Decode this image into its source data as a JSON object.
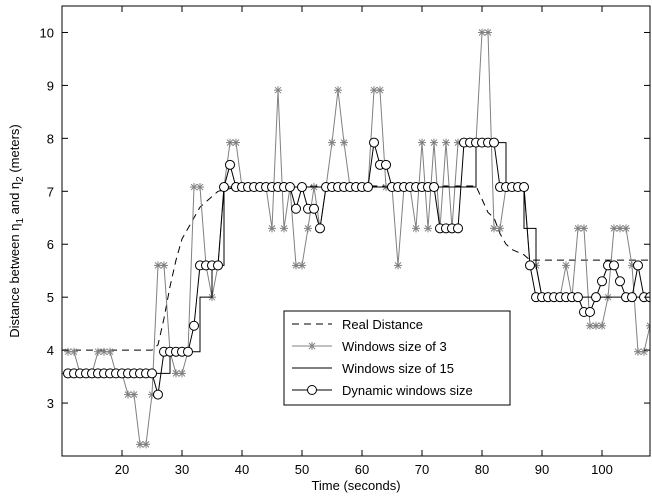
{
  "chart_data": {
    "type": "line",
    "title": "",
    "xlabel": "Time (seconds)",
    "ylabel": "Distance between η1 and η2 (meters)",
    "ylabel_parts": [
      "Distance between η",
      "1",
      " and η",
      "2",
      " (meters)"
    ],
    "xlim": [
      10,
      108
    ],
    "ylim": [
      2,
      10.5
    ],
    "xticks": [
      20,
      30,
      40,
      50,
      60,
      70,
      80,
      90,
      100
    ],
    "yticks": [
      3,
      4,
      5,
      6,
      7,
      8,
      9,
      10
    ],
    "grid": false,
    "legend_position": "lower-center",
    "series": [
      {
        "name": "Real Distance",
        "style": "dashed",
        "marker": "none",
        "color": "#000000",
        "points": [
          [
            10,
            4
          ],
          [
            13,
            4
          ],
          [
            16,
            4
          ],
          [
            19,
            4
          ],
          [
            22,
            4
          ],
          [
            25,
            4
          ],
          [
            26,
            4.1
          ],
          [
            27,
            4.6
          ],
          [
            28,
            5.2
          ],
          [
            29,
            5.7
          ],
          [
            30,
            6.1
          ],
          [
            31,
            6.3
          ],
          [
            32,
            6.5
          ],
          [
            33,
            6.7
          ],
          [
            34,
            6.8
          ],
          [
            35,
            6.9
          ],
          [
            36,
            7.0
          ],
          [
            38,
            7.05
          ],
          [
            40,
            7.1
          ],
          [
            78,
            7.1
          ],
          [
            79,
            7.1
          ],
          [
            80,
            6.85
          ],
          [
            81,
            6.6
          ],
          [
            82,
            6.5
          ],
          [
            83,
            6.2
          ],
          [
            84,
            6.0
          ],
          [
            85,
            5.9
          ],
          [
            86,
            5.85
          ],
          [
            87,
            5.8
          ],
          [
            88,
            5.7
          ],
          [
            108,
            5.7
          ]
        ]
      },
      {
        "name": "Windows size of 3",
        "style": "solid",
        "marker": "star",
        "color": "#808080",
        "points": [
          [
            11,
            3.97
          ],
          [
            12,
            3.97
          ],
          [
            13,
            3.56
          ],
          [
            14,
            3.56
          ],
          [
            15,
            3.56
          ],
          [
            16,
            3.97
          ],
          [
            17,
            3.97
          ],
          [
            18,
            3.97
          ],
          [
            19,
            3.56
          ],
          [
            20,
            3.56
          ],
          [
            21,
            3.16
          ],
          [
            22,
            3.16
          ],
          [
            23,
            2.22
          ],
          [
            24,
            2.22
          ],
          [
            25,
            3.16
          ],
          [
            26,
            5.6
          ],
          [
            27,
            5.6
          ],
          [
            28,
            3.97
          ],
          [
            29,
            3.56
          ],
          [
            30,
            3.56
          ],
          [
            31,
            3.97
          ],
          [
            32,
            7.08
          ],
          [
            33,
            7.08
          ],
          [
            34,
            5.6
          ],
          [
            35,
            5.0
          ],
          [
            36,
            5.6
          ],
          [
            37,
            7.08
          ],
          [
            38,
            7.92
          ],
          [
            39,
            7.92
          ],
          [
            40,
            7.08
          ],
          [
            41,
            7.08
          ],
          [
            42,
            7.08
          ],
          [
            43,
            7.08
          ],
          [
            44,
            7.08
          ],
          [
            45,
            6.3
          ],
          [
            46,
            8.91
          ],
          [
            47,
            6.3
          ],
          [
            48,
            7.08
          ],
          [
            49,
            5.6
          ],
          [
            50,
            5.6
          ],
          [
            51,
            6.3
          ],
          [
            52,
            7.08
          ],
          [
            53,
            6.3
          ],
          [
            54,
            7.08
          ],
          [
            55,
            7.92
          ],
          [
            56,
            8.91
          ],
          [
            57,
            7.92
          ],
          [
            58,
            7.08
          ],
          [
            59,
            7.08
          ],
          [
            60,
            7.08
          ],
          [
            61,
            7.08
          ],
          [
            62,
            8.91
          ],
          [
            63,
            8.91
          ],
          [
            64,
            7.08
          ],
          [
            65,
            7.08
          ],
          [
            66,
            5.6
          ],
          [
            67,
            7.08
          ],
          [
            68,
            7.08
          ],
          [
            69,
            6.3
          ],
          [
            70,
            7.92
          ],
          [
            71,
            6.3
          ],
          [
            72,
            7.92
          ],
          [
            73,
            6.3
          ],
          [
            74,
            7.92
          ],
          [
            75,
            6.3
          ],
          [
            76,
            7.92
          ],
          [
            77,
            7.92
          ],
          [
            78,
            7.92
          ],
          [
            79,
            7.92
          ],
          [
            80,
            10.0
          ],
          [
            81,
            10.0
          ],
          [
            82,
            6.3
          ],
          [
            83,
            6.3
          ],
          [
            84,
            7.08
          ],
          [
            85,
            7.08
          ],
          [
            86,
            7.08
          ],
          [
            87,
            7.08
          ],
          [
            88,
            5.6
          ],
          [
            89,
            5.6
          ],
          [
            90,
            5.0
          ],
          [
            91,
            5.0
          ],
          [
            92,
            5.0
          ],
          [
            93,
            5.0
          ],
          [
            94,
            5.6
          ],
          [
            95,
            5.0
          ],
          [
            96,
            6.3
          ],
          [
            97,
            6.3
          ],
          [
            98,
            4.46
          ],
          [
            99,
            4.46
          ],
          [
            100,
            4.46
          ],
          [
            101,
            5.0
          ],
          [
            102,
            6.3
          ],
          [
            103,
            6.3
          ],
          [
            104,
            6.3
          ],
          [
            105,
            5.6
          ],
          [
            106,
            3.97
          ],
          [
            107,
            3.97
          ],
          [
            108,
            4.46
          ]
        ]
      },
      {
        "name": "Windows size of 15",
        "style": "solid",
        "marker": "none",
        "color": "#000000",
        "points": [
          [
            10,
            3.56
          ],
          [
            28,
            3.56
          ],
          [
            28,
            3.97
          ],
          [
            33,
            3.97
          ],
          [
            33,
            5.0
          ],
          [
            35,
            5.0
          ],
          [
            35,
            5.6
          ],
          [
            37,
            5.6
          ],
          [
            37,
            7.08
          ],
          [
            40,
            7.08
          ],
          [
            41,
            7.08
          ],
          [
            79,
            7.08
          ],
          [
            79,
            7.92
          ],
          [
            84,
            7.92
          ],
          [
            84,
            7.08
          ],
          [
            87,
            7.08
          ],
          [
            87,
            6.3
          ],
          [
            89,
            6.3
          ],
          [
            89,
            5.6
          ],
          [
            90,
            5.0
          ],
          [
            106,
            5.0
          ],
          [
            108,
            5.0
          ]
        ]
      },
      {
        "name": "Dynamic windows size",
        "style": "solid",
        "marker": "circle",
        "color": "#000000",
        "points": [
          [
            11,
            3.56
          ],
          [
            12,
            3.56
          ],
          [
            13,
            3.56
          ],
          [
            14,
            3.56
          ],
          [
            15,
            3.56
          ],
          [
            16,
            3.56
          ],
          [
            17,
            3.56
          ],
          [
            18,
            3.56
          ],
          [
            19,
            3.56
          ],
          [
            20,
            3.56
          ],
          [
            21,
            3.56
          ],
          [
            22,
            3.56
          ],
          [
            23,
            3.56
          ],
          [
            24,
            3.56
          ],
          [
            25,
            3.56
          ],
          [
            26,
            3.16
          ],
          [
            27,
            3.97
          ],
          [
            28,
            3.97
          ],
          [
            29,
            3.97
          ],
          [
            30,
            3.97
          ],
          [
            31,
            3.97
          ],
          [
            32,
            4.46
          ],
          [
            33,
            5.6
          ],
          [
            34,
            5.6
          ],
          [
            35,
            5.6
          ],
          [
            36,
            5.6
          ],
          [
            37,
            7.08
          ],
          [
            38,
            7.5
          ],
          [
            39,
            7.08
          ],
          [
            40,
            7.08
          ],
          [
            41,
            7.08
          ],
          [
            42,
            7.08
          ],
          [
            43,
            7.08
          ],
          [
            44,
            7.08
          ],
          [
            45,
            7.08
          ],
          [
            46,
            7.08
          ],
          [
            47,
            7.08
          ],
          [
            48,
            7.08
          ],
          [
            49,
            6.67
          ],
          [
            50,
            7.08
          ],
          [
            51,
            6.67
          ],
          [
            52,
            6.67
          ],
          [
            53,
            6.3
          ],
          [
            54,
            7.08
          ],
          [
            55,
            7.08
          ],
          [
            56,
            7.08
          ],
          [
            57,
            7.08
          ],
          [
            58,
            7.08
          ],
          [
            59,
            7.08
          ],
          [
            60,
            7.08
          ],
          [
            61,
            7.08
          ],
          [
            62,
            7.92
          ],
          [
            63,
            7.5
          ],
          [
            64,
            7.5
          ],
          [
            65,
            7.08
          ],
          [
            66,
            7.08
          ],
          [
            67,
            7.08
          ],
          [
            68,
            7.08
          ],
          [
            69,
            7.08
          ],
          [
            70,
            7.08
          ],
          [
            71,
            7.08
          ],
          [
            72,
            7.08
          ],
          [
            73,
            6.3
          ],
          [
            74,
            6.3
          ],
          [
            75,
            6.3
          ],
          [
            76,
            6.3
          ],
          [
            77,
            7.92
          ],
          [
            78,
            7.92
          ],
          [
            79,
            7.92
          ],
          [
            80,
            7.92
          ],
          [
            81,
            7.92
          ],
          [
            82,
            7.92
          ],
          [
            83,
            7.08
          ],
          [
            84,
            7.08
          ],
          [
            85,
            7.08
          ],
          [
            86,
            7.08
          ],
          [
            87,
            7.08
          ],
          [
            88,
            5.6
          ],
          [
            89,
            5.0
          ],
          [
            90,
            5.0
          ],
          [
            91,
            5.0
          ],
          [
            92,
            5.0
          ],
          [
            93,
            5.0
          ],
          [
            94,
            5.0
          ],
          [
            95,
            5.0
          ],
          [
            96,
            5.0
          ],
          [
            97,
            4.72
          ],
          [
            98,
            4.72
          ],
          [
            99,
            5.0
          ],
          [
            100,
            5.3
          ],
          [
            101,
            5.6
          ],
          [
            102,
            5.6
          ],
          [
            103,
            5.3
          ],
          [
            104,
            5.0
          ],
          [
            105,
            5.0
          ],
          [
            106,
            5.6
          ],
          [
            107,
            5.0
          ],
          [
            108,
            5.0
          ]
        ]
      }
    ]
  }
}
